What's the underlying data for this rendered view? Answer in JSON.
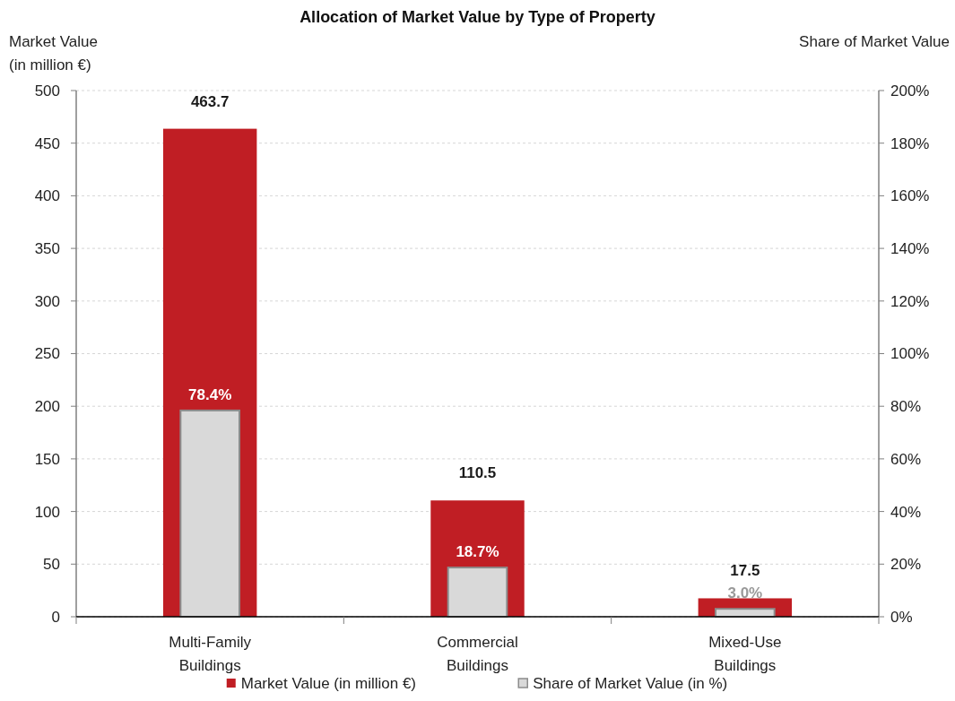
{
  "chart_data": {
    "type": "bar",
    "title": "Allocation of Market Value by Type of Property",
    "categories": [
      "Multi-Family Buildings",
      "Commercial Buildings",
      "Mixed-Use Buildings"
    ],
    "series": [
      {
        "name": "Market Value (in million €)",
        "color": "#c01e24",
        "values": [
          463.7,
          110.5,
          17.5
        ],
        "value_labels": [
          "463.7",
          "110.5",
          "17.5"
        ]
      },
      {
        "name": "Share of Market Value (in %)",
        "color": "#d9d9d9",
        "axis": "y2",
        "values": [
          78.4,
          18.7,
          3.0
        ],
        "value_labels": [
          "78.4%",
          "18.7%",
          "3.0%"
        ]
      }
    ],
    "ylabel": "Market Value (in million €)",
    "y2label": "Share of Market Value",
    "ylim": [
      0,
      500
    ],
    "yticks": [
      0,
      50,
      100,
      150,
      200,
      250,
      300,
      350,
      400,
      450,
      500
    ],
    "y2lim": [
      0,
      200
    ],
    "y2ticks": [
      {
        "value": 0,
        "label": "0%"
      },
      {
        "value": 20,
        "label": "20%"
      },
      {
        "value": 40,
        "label": "40%"
      },
      {
        "value": 60,
        "label": "60%"
      },
      {
        "value": 80,
        "label": "80%"
      },
      {
        "value": 100,
        "label": "100%"
      },
      {
        "value": 120,
        "label": "120%"
      },
      {
        "value": 140,
        "label": "140%"
      },
      {
        "value": 160,
        "label": "160%"
      },
      {
        "value": 180,
        "label": "180%"
      },
      {
        "value": 200,
        "label": "200%"
      }
    ],
    "grid": "y",
    "legend": "bottom"
  }
}
